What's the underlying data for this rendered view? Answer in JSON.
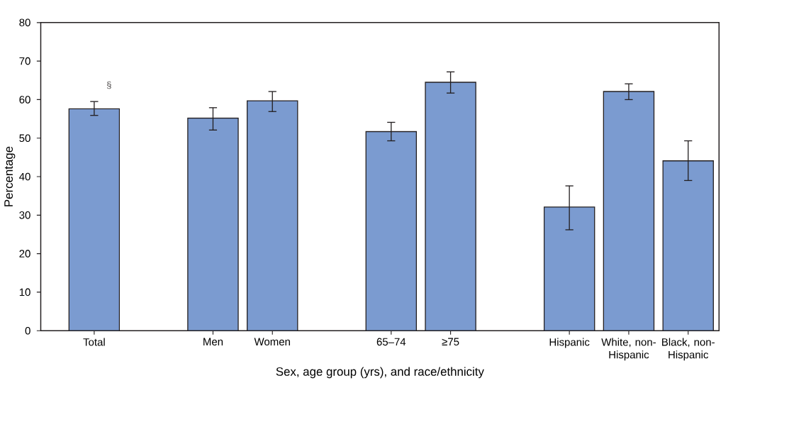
{
  "chart_data": {
    "type": "bar",
    "xlabel": "Sex, age group (yrs), and race/ethnicity",
    "ylabel": "Percentage",
    "categories": [
      "Total",
      null,
      "Men",
      "Women",
      null,
      "65–74",
      "≥75",
      null,
      "Hispanic",
      "White, non-Hispanic",
      "Black, non-Hispanic"
    ],
    "values": [
      57.6,
      null,
      55.2,
      59.7,
      null,
      51.7,
      64.5,
      null,
      32.1,
      62.1,
      44.1
    ],
    "errors": [
      [
        55.9,
        59.5
      ],
      null,
      [
        52.1,
        57.9
      ],
      [
        56.9,
        62.1
      ],
      null,
      [
        49.3,
        54.1
      ],
      [
        61.7,
        67.2
      ],
      null,
      [
        26.2,
        37.6
      ],
      [
        60.0,
        64.1
      ],
      [
        39.0,
        49.3
      ]
    ],
    "color": "#7b9bd0",
    "ylim": [
      0,
      80
    ],
    "yticks": [
      0,
      10,
      20,
      30,
      40,
      50,
      60,
      70,
      80
    ],
    "annotations": [
      "§"
    ]
  }
}
